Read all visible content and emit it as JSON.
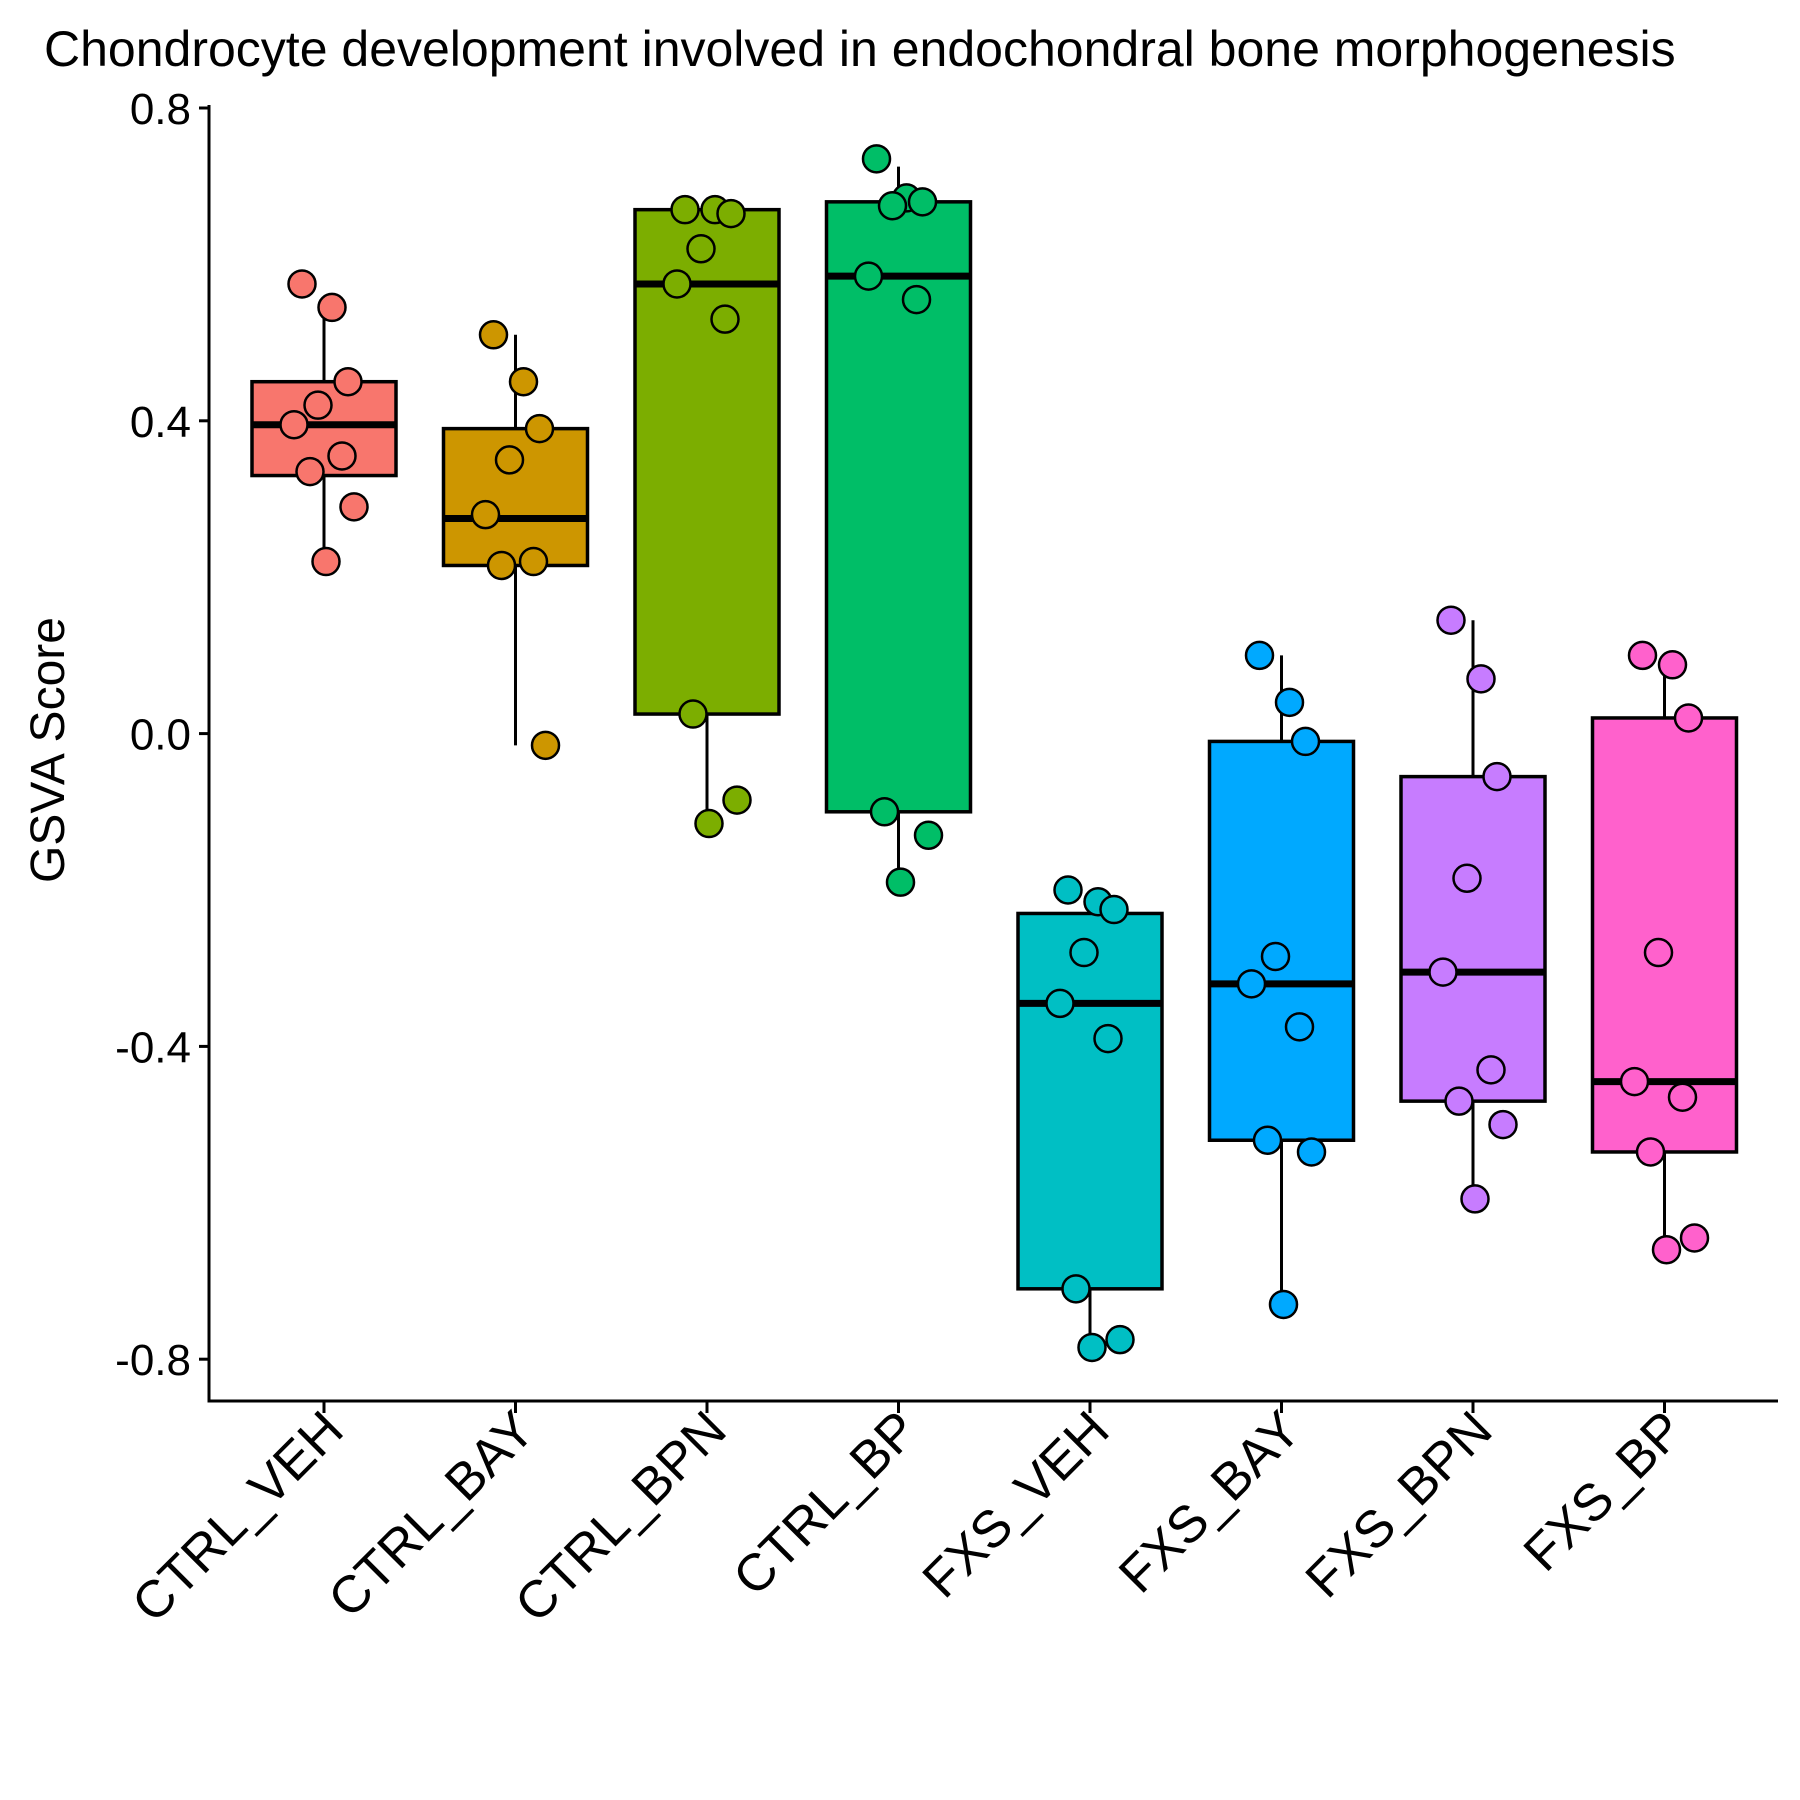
{
  "chart_data": {
    "type": "box",
    "title": "Chondrocyte development involved in endochondral bone morphogenesis",
    "ylabel": "GSVA Score",
    "xlabel": "",
    "ylim": [
      -0.855,
      0.8
    ],
    "yticks": [
      -0.8,
      -0.4,
      0.0,
      0.4,
      0.8
    ],
    "ytick_labels": [
      "-0.8",
      "-0.4",
      "0.0",
      "0.4",
      "0.8"
    ],
    "grid": false,
    "legend": "none",
    "categories": [
      "CTRL_VEH",
      "CTRL_BAY",
      "CTRL_BPN",
      "CTRL_BP",
      "FXS_VEH",
      "FXS_BAY",
      "FXS_BPN",
      "FXS_BP"
    ],
    "colors": [
      "#F8766D",
      "#CD9600",
      "#7CAE00",
      "#00BE67",
      "#00BFC4",
      "#00A9FF",
      "#C77CFF",
      "#FF61CC"
    ],
    "boxes": [
      {
        "min": 0.225,
        "q1": 0.33,
        "median": 0.395,
        "q3": 0.45,
        "max": 0.54
      },
      {
        "min": -0.015,
        "q1": 0.215,
        "median": 0.275,
        "q3": 0.39,
        "max": 0.51
      },
      {
        "min": -0.115,
        "q1": 0.025,
        "median": 0.575,
        "q3": 0.67,
        "max": 0.67
      },
      {
        "min": -0.19,
        "q1": -0.1,
        "median": 0.585,
        "q3": 0.68,
        "max": 0.725
      },
      {
        "min": -0.79,
        "q1": -0.71,
        "median": -0.345,
        "q3": -0.23,
        "max": -0.225
      },
      {
        "min": -0.73,
        "q1": -0.52,
        "median": -0.32,
        "q3": -0.01,
        "max": 0.1
      },
      {
        "min": -0.59,
        "q1": -0.47,
        "median": -0.305,
        "q3": -0.055,
        "max": 0.145
      },
      {
        "min": -0.66,
        "q1": -0.535,
        "median": -0.445,
        "q3": 0.02,
        "max": 0.09
      }
    ],
    "points": [
      [
        0.575,
        0.545,
        0.45,
        0.42,
        0.395,
        0.355,
        0.335,
        0.29,
        0.22
      ],
      [
        0.51,
        0.45,
        0.39,
        0.35,
        0.28,
        0.22,
        0.215,
        -0.015
      ],
      [
        0.67,
        0.67,
        0.665,
        0.62,
        0.575,
        0.53,
        0.025,
        -0.085,
        -0.115
      ],
      [
        0.735,
        0.685,
        0.68,
        0.675,
        0.585,
        0.555,
        -0.1,
        -0.13,
        -0.19
      ],
      [
        -0.2,
        -0.215,
        -0.225,
        -0.28,
        -0.345,
        -0.39,
        -0.71,
        -0.775,
        -0.785
      ],
      [
        0.1,
        0.04,
        -0.01,
        -0.285,
        -0.32,
        -0.375,
        -0.52,
        -0.535,
        -0.73
      ],
      [
        0.145,
        0.07,
        -0.055,
        -0.185,
        -0.305,
        -0.43,
        -0.47,
        -0.5,
        -0.595
      ],
      [
        0.1,
        0.088,
        0.02,
        -0.28,
        -0.445,
        -0.465,
        -0.535,
        -0.645,
        -0.66
      ]
    ]
  }
}
